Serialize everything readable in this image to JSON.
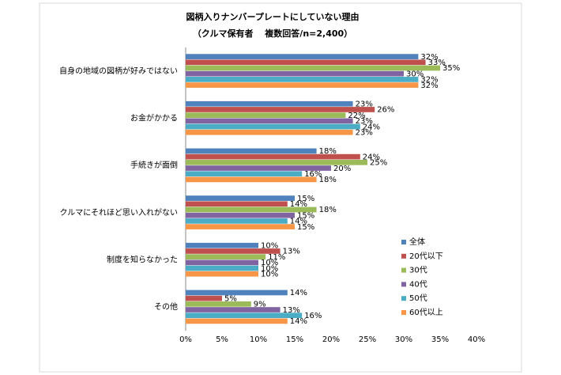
{
  "chart_data": {
    "type": "hbar",
    "title": "図柄入りナンバープレートにしていない理由",
    "subtitle": "（クルマ保有者　 複数回答/n=2,400）",
    "categories": [
      "自身の地域の図柄が好みではない",
      "お金がかかる",
      "手続きが面倒",
      "クルマにそれほど思い入れがない",
      "制度を知らなかった",
      "その他"
    ],
    "series": [
      {
        "name": "全体",
        "color": "#4f81bd",
        "values": [
          32,
          23,
          18,
          15,
          10,
          14
        ],
        "value_labels": [
          "32%",
          "23%",
          "18%",
          "15%",
          "10%",
          "14%"
        ]
      },
      {
        "name": "20代以下",
        "color": "#c0504d",
        "values": [
          33,
          26,
          24,
          14,
          13,
          5
        ],
        "value_labels": [
          "33%",
          "26%",
          "24%",
          "14%",
          "13%",
          "5%"
        ]
      },
      {
        "name": "30代",
        "color": "#9bbb59",
        "values": [
          35,
          22,
          25,
          18,
          11,
          9
        ],
        "value_labels": [
          "35%",
          "22%",
          "25%",
          "18%",
          "11%",
          "9%"
        ]
      },
      {
        "name": "40代",
        "color": "#8064a2",
        "values": [
          30,
          23,
          20,
          15,
          10,
          13
        ],
        "value_labels": [
          "30%",
          "23%",
          "20%",
          "15%",
          "10%",
          "13%"
        ]
      },
      {
        "name": "50代",
        "color": "#4bacc6",
        "values": [
          32,
          24,
          16,
          14,
          10,
          16
        ],
        "value_labels": [
          "32%",
          "24%",
          "16%",
          "14%",
          "10%",
          "16%"
        ]
      },
      {
        "name": "60代以上",
        "color": "#f79646",
        "values": [
          32,
          23,
          18,
          15,
          10,
          14
        ],
        "value_labels": [
          "32%",
          "23%",
          "18%",
          "15%",
          "10%",
          "14%"
        ]
      }
    ],
    "xlim": [
      0,
      40
    ],
    "xticks": [
      {
        "value": 0,
        "label": "0%"
      },
      {
        "value": 5,
        "label": "5%"
      },
      {
        "value": 10,
        "label": "10%"
      },
      {
        "value": 15,
        "label": "15%"
      },
      {
        "value": 20,
        "label": "20%"
      },
      {
        "value": 25,
        "label": "25%"
      },
      {
        "value": 30,
        "label": "30%"
      },
      {
        "value": 35,
        "label": "35%"
      },
      {
        "value": 40,
        "label": "40%"
      }
    ],
    "grid": false,
    "legend": "right"
  }
}
